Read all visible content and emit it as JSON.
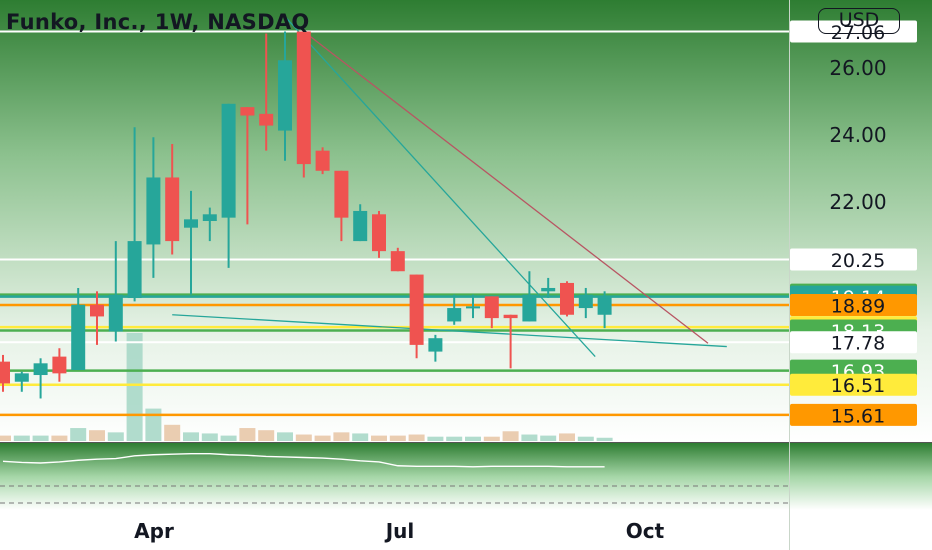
{
  "header": {
    "symbol_title": "Funko, Inc., 1W, NASDAQ",
    "currency": "USD"
  },
  "colors": {
    "up": "#26a69a",
    "down": "#ef5350",
    "background_top": "#2e7d32",
    "white_line": "#ffffff",
    "green_level": "#4caf50",
    "teal_level": "#26a69a",
    "orange_level": "#ff9800",
    "yellow_level": "#ffeb3b"
  },
  "chart_data": {
    "type": "candlestick",
    "title": "Funko, Inc., 1W, NASDAQ",
    "currency": "USD",
    "interval": "1W",
    "x_tick_labels": [
      "Apr",
      "Jul",
      "Oct"
    ],
    "y_axis_labels": [
      "26.00",
      "24.00",
      "22.00"
    ],
    "ylim": [
      14.8,
      28.0
    ],
    "candles": [
      {
        "week": 0,
        "open": 17.2,
        "high": 17.4,
        "low": 16.3,
        "close": 16.55
      },
      {
        "week": 1,
        "open": 16.6,
        "high": 16.9,
        "low": 16.3,
        "close": 16.85
      },
      {
        "week": 2,
        "open": 16.8,
        "high": 17.3,
        "low": 16.1,
        "close": 17.15
      },
      {
        "week": 3,
        "open": 17.35,
        "high": 17.6,
        "low": 16.6,
        "close": 16.85
      },
      {
        "week": 4,
        "open": 16.95,
        "high": 19.4,
        "low": 16.95,
        "close": 18.9
      },
      {
        "week": 5,
        "open": 18.9,
        "high": 19.3,
        "low": 17.7,
        "close": 18.55
      },
      {
        "week": 6,
        "open": 18.1,
        "high": 20.8,
        "low": 17.8,
        "close": 19.2
      },
      {
        "week": 7,
        "open": 19.1,
        "high": 24.2,
        "low": 19.0,
        "close": 20.8
      },
      {
        "week": 8,
        "open": 20.7,
        "high": 23.9,
        "low": 19.7,
        "close": 22.7
      },
      {
        "week": 9,
        "open": 22.7,
        "high": 23.7,
        "low": 20.4,
        "close": 20.8
      },
      {
        "week": 10,
        "open": 21.2,
        "high": 22.3,
        "low": 19.2,
        "close": 21.45
      },
      {
        "week": 11,
        "open": 21.4,
        "high": 21.8,
        "low": 20.8,
        "close": 21.6
      },
      {
        "week": 12,
        "open": 21.5,
        "high": 24.9,
        "low": 20.0,
        "close": 24.9
      },
      {
        "week": 13,
        "open": 24.8,
        "high": 24.8,
        "low": 21.3,
        "close": 24.55
      },
      {
        "week": 14,
        "open": 24.6,
        "high": 27.0,
        "low": 23.5,
        "close": 24.25
      },
      {
        "week": 15,
        "open": 24.1,
        "high": 27.06,
        "low": 23.2,
        "close": 26.2
      },
      {
        "week": 16,
        "open": 27.06,
        "high": 27.06,
        "low": 22.7,
        "close": 23.1
      },
      {
        "week": 17,
        "open": 23.5,
        "high": 23.6,
        "low": 22.8,
        "close": 22.9
      },
      {
        "week": 18,
        "open": 22.9,
        "high": 22.9,
        "low": 20.8,
        "close": 21.5
      },
      {
        "week": 19,
        "open": 20.8,
        "high": 21.9,
        "low": 20.8,
        "close": 21.7
      },
      {
        "week": 20,
        "open": 21.6,
        "high": 21.7,
        "low": 20.3,
        "close": 20.5
      },
      {
        "week": 21,
        "open": 20.5,
        "high": 20.6,
        "low": 19.9,
        "close": 19.9
      },
      {
        "week": 22,
        "open": 19.8,
        "high": 19.8,
        "low": 17.3,
        "close": 17.7
      },
      {
        "week": 23,
        "open": 17.5,
        "high": 18.0,
        "low": 17.2,
        "close": 17.9
      },
      {
        "week": 24,
        "open": 18.4,
        "high": 19.2,
        "low": 18.3,
        "close": 18.8
      },
      {
        "week": 25,
        "open": 18.8,
        "high": 19.2,
        "low": 18.5,
        "close": 18.85
      },
      {
        "week": 26,
        "open": 19.15,
        "high": 19.15,
        "low": 18.2,
        "close": 18.5
      },
      {
        "week": 27,
        "open": 18.6,
        "high": 18.6,
        "low": 17.0,
        "close": 18.5
      },
      {
        "week": 28,
        "open": 18.4,
        "high": 19.9,
        "low": 18.4,
        "close": 19.2
      },
      {
        "week": 29,
        "open": 19.3,
        "high": 19.7,
        "low": 19.1,
        "close": 19.4
      },
      {
        "week": 30,
        "open": 19.55,
        "high": 19.6,
        "low": 18.55,
        "close": 18.6
      },
      {
        "week": 31,
        "open": 18.8,
        "high": 19.4,
        "low": 18.5,
        "close": 19.2
      },
      {
        "week": 32,
        "open": 18.6,
        "high": 19.3,
        "low": 18.2,
        "close": 19.14
      }
    ],
    "volume_relative": [
      0.05,
      0.05,
      0.05,
      0.05,
      0.12,
      0.1,
      0.08,
      1.0,
      0.3,
      0.15,
      0.08,
      0.07,
      0.05,
      0.12,
      0.1,
      0.08,
      0.06,
      0.05,
      0.08,
      0.07,
      0.05,
      0.05,
      0.06,
      0.04,
      0.04,
      0.04,
      0.04,
      0.09,
      0.06,
      0.05,
      0.07,
      0.04,
      0.03
    ],
    "rsi": [
      58,
      56,
      55,
      57,
      60,
      62,
      63,
      68,
      70,
      71,
      72,
      72,
      70,
      69,
      67,
      66,
      65,
      64,
      62,
      59,
      57,
      50,
      49,
      49,
      49,
      48,
      49,
      49,
      49,
      49,
      48,
      48,
      48
    ],
    "horizontal_levels": [
      {
        "price": 27.06,
        "color": "#ffffff",
        "label": "27.06"
      },
      {
        "price": 20.25,
        "color": "#ffffff",
        "label": "20.25"
      },
      {
        "price": 19.2,
        "color": "#4caf50",
        "label": "19.20"
      },
      {
        "price": 19.14,
        "color": "#26a69a",
        "label": "19.14"
      },
      {
        "price": 18.89,
        "color": "#ff9800",
        "label": "18.89"
      },
      {
        "price": 18.23,
        "color": "#ffeb3b",
        "label": "18.23"
      },
      {
        "price": 18.13,
        "color": "#4caf50",
        "label": "18.13"
      },
      {
        "price": 17.78,
        "color": "#ffffff",
        "label": "17.78"
      },
      {
        "price": 16.93,
        "color": "#4caf50",
        "label": "16.93"
      },
      {
        "price": 16.51,
        "color": "#ffeb3b",
        "label": "16.51"
      },
      {
        "price": 15.61,
        "color": "#ff9800",
        "label": "15.61"
      }
    ],
    "trend_lines": [
      {
        "from": {
          "week": 15,
          "price": 27.5
        },
        "to": {
          "week": 31.5,
          "price": 17.35
        },
        "color": "#26a69a"
      },
      {
        "from": {
          "week": 16,
          "price": 27.06
        },
        "to": {
          "week": 37.5,
          "price": 17.75
        },
        "color": "#b85563"
      },
      {
        "from": {
          "week": 9,
          "price": 18.6
        },
        "to": {
          "week": 38.5,
          "price": 17.65
        },
        "color": "#26a69a"
      }
    ]
  }
}
